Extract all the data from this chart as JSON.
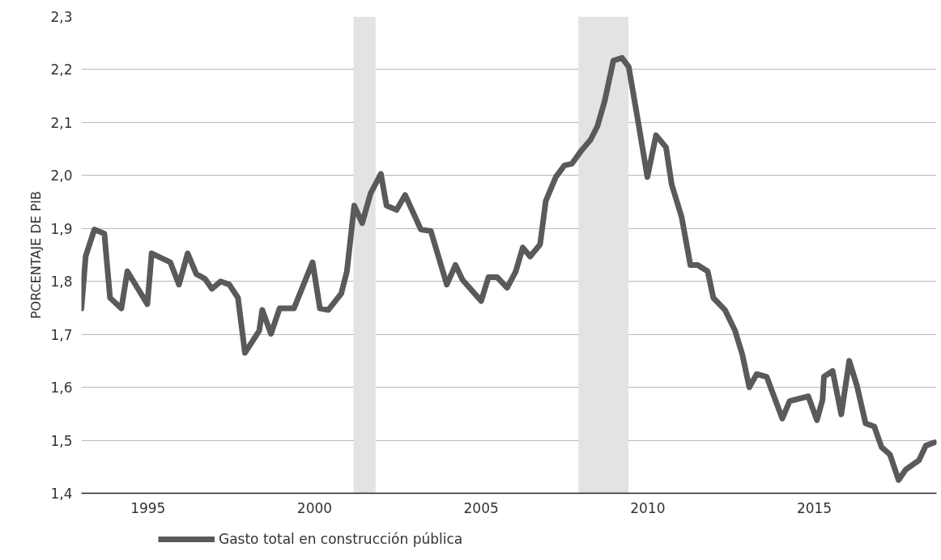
{
  "chart_data": {
    "type": "line",
    "ylabel": "PORCENTAJE DE PIB",
    "xlim": [
      1993.0,
      2018.67
    ],
    "ylim": [
      1.4,
      2.3
    ],
    "xticks": [
      1995,
      2000,
      2005,
      2010,
      2015
    ],
    "yticks": [
      {
        "value": 1.4,
        "label": "1,4"
      },
      {
        "value": 1.5,
        "label": "1,5"
      },
      {
        "value": 1.6,
        "label": "1,6"
      },
      {
        "value": 1.7,
        "label": "1,7"
      },
      {
        "value": 1.8,
        "label": "1,8"
      },
      {
        "value": 1.9,
        "label": "1,9"
      },
      {
        "value": 2.0,
        "label": "2,0"
      },
      {
        "value": 2.1,
        "label": "2,1"
      },
      {
        "value": 2.2,
        "label": "2,2"
      },
      {
        "value": 2.3,
        "label": "2,3"
      }
    ],
    "grid": "y",
    "legend": "bottom left",
    "marker": "none",
    "line_style": "solid",
    "bands": [
      {
        "axis": "x",
        "from": 2001.17,
        "to": 2001.83,
        "color": "#e3e3e3"
      },
      {
        "axis": "x",
        "from": 2007.92,
        "to": 2009.42,
        "color": "#e3e3e3"
      }
    ],
    "series": [
      {
        "name": "Gasto total en construcción pública",
        "color": "#5a5a5a",
        "x": [
          1993.0,
          1993.13,
          1993.39,
          1993.69,
          1993.86,
          1994.2,
          1994.38,
          1994.98,
          1995.11,
          1995.67,
          1995.93,
          1996.19,
          1996.45,
          1996.71,
          1996.92,
          1997.18,
          1997.44,
          1997.7,
          1997.91,
          1998.34,
          1998.43,
          1998.69,
          1998.95,
          1999.38,
          1999.94,
          2000.16,
          2000.41,
          2000.8,
          2000.97,
          2001.19,
          2001.43,
          2001.68,
          2001.99,
          2002.16,
          2002.46,
          2002.72,
          2003.19,
          2003.49,
          2003.97,
          2004.23,
          2004.44,
          2005.0,
          2005.22,
          2005.48,
          2005.78,
          2006.04,
          2006.25,
          2006.47,
          2006.77,
          2006.94,
          2007.24,
          2007.5,
          2007.72,
          2008.02,
          2008.28,
          2008.49,
          2008.71,
          2008.97,
          2009.23,
          2009.43,
          2009.73,
          2009.99,
          2010.25,
          2010.55,
          2010.72,
          2011.02,
          2011.28,
          2011.5,
          2011.8,
          2011.97,
          2012.32,
          2012.62,
          2012.84,
          2013.05,
          2013.27,
          2013.57,
          2014.04,
          2014.26,
          2014.82,
          2015.08,
          2015.25,
          2015.29,
          2015.55,
          2015.81,
          2016.05,
          2016.28,
          2016.54,
          2016.8,
          2017.02,
          2017.27,
          2017.53,
          2017.75,
          2018.14,
          2018.35,
          2018.61
        ],
        "values": [
          1.749,
          1.848,
          1.898,
          1.89,
          1.769,
          1.749,
          1.819,
          1.757,
          1.853,
          1.836,
          1.794,
          1.853,
          1.814,
          1.805,
          1.786,
          1.8,
          1.794,
          1.769,
          1.665,
          1.707,
          1.746,
          1.701,
          1.749,
          1.749,
          1.836,
          1.749,
          1.746,
          1.777,
          1.819,
          1.943,
          1.91,
          1.966,
          2.003,
          1.943,
          1.935,
          1.963,
          1.898,
          1.895,
          1.794,
          1.831,
          1.803,
          1.763,
          1.808,
          1.808,
          1.788,
          1.819,
          1.864,
          1.847,
          1.87,
          1.952,
          1.997,
          2.019,
          2.022,
          2.048,
          2.067,
          2.093,
          2.141,
          2.217,
          2.222,
          2.205,
          2.095,
          1.997,
          2.076,
          2.053,
          1.983,
          1.921,
          1.831,
          1.831,
          1.819,
          1.769,
          1.746,
          1.707,
          1.662,
          1.6,
          1.625,
          1.62,
          1.541,
          1.574,
          1.583,
          1.538,
          1.577,
          1.62,
          1.631,
          1.549,
          1.65,
          1.603,
          1.532,
          1.526,
          1.487,
          1.473,
          1.425,
          1.445,
          1.462,
          1.49,
          1.496
        ]
      }
    ]
  }
}
